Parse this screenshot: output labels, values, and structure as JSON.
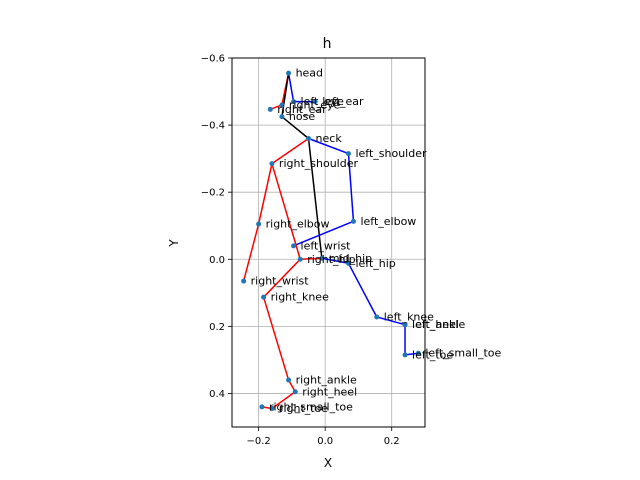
{
  "chart_data": {
    "type": "scatter",
    "title": "h",
    "xlabel": "X",
    "ylabel": "Y",
    "xlim": [
      -0.28,
      0.3
    ],
    "ylim": [
      0.5,
      -0.6
    ],
    "y_inverted": true,
    "grid": true,
    "xticks": [
      -0.2,
      0.0,
      0.2
    ],
    "xtick_labels": [
      "−0.2",
      "0.0",
      "0.2"
    ],
    "yticks": [
      -0.6,
      -0.4,
      -0.2,
      0.0,
      0.2,
      0.4
    ],
    "ytick_labels": [
      "−0.6",
      "−0.4",
      "−0.2",
      "0.0",
      "0.2",
      "0.4"
    ],
    "colors": {
      "left": "#0000ff",
      "right": "#ff0000",
      "center": "#000000",
      "point": "#1f77b4",
      "grid": "#b0b0b0"
    },
    "keypoints": [
      {
        "name": "head",
        "x": -0.11,
        "y": -0.555
      },
      {
        "name": "left_eye",
        "x": -0.095,
        "y": -0.47
      },
      {
        "name": "right_eye",
        "x": -0.13,
        "y": -0.46
      },
      {
        "name": "left_ear",
        "x": -0.03,
        "y": -0.47
      },
      {
        "name": "right_ear",
        "x": -0.165,
        "y": -0.447
      },
      {
        "name": "nose",
        "x": -0.13,
        "y": -0.425
      },
      {
        "name": "neck",
        "x": -0.05,
        "y": -0.36
      },
      {
        "name": "left_shoulder",
        "x": 0.07,
        "y": -0.315
      },
      {
        "name": "right_shoulder",
        "x": -0.16,
        "y": -0.285
      },
      {
        "name": "left_elbow",
        "x": 0.085,
        "y": -0.113
      },
      {
        "name": "right_elbow",
        "x": -0.2,
        "y": -0.105
      },
      {
        "name": "left_wrist",
        "x": -0.095,
        "y": -0.04
      },
      {
        "name": "right_wrist",
        "x": -0.245,
        "y": 0.065
      },
      {
        "name": "mid_hip",
        "x": -0.01,
        "y": -0.003
      },
      {
        "name": "left_hip",
        "x": 0.07,
        "y": 0.012
      },
      {
        "name": "right_hip",
        "x": -0.075,
        "y": 0.0
      },
      {
        "name": "left_knee",
        "x": 0.155,
        "y": 0.172
      },
      {
        "name": "right_knee",
        "x": -0.185,
        "y": 0.113
      },
      {
        "name": "left_ankle",
        "x": 0.24,
        "y": 0.195
      },
      {
        "name": "right_ankle",
        "x": -0.11,
        "y": 0.36
      },
      {
        "name": "left_heel",
        "x": 0.24,
        "y": 0.195
      },
      {
        "name": "right_heel",
        "x": -0.09,
        "y": 0.395
      },
      {
        "name": "left_small_toe",
        "x": 0.28,
        "y": 0.28
      },
      {
        "name": "right_small_toe",
        "x": -0.19,
        "y": 0.44
      },
      {
        "name": "left_toe",
        "x": 0.24,
        "y": 0.285
      },
      {
        "name": "right_toe",
        "x": -0.16,
        "y": 0.445
      }
    ],
    "labels": [
      {
        "name": "head",
        "text": "head"
      },
      {
        "name": "left_eye",
        "text": "left_eye"
      },
      {
        "name": "right_eye",
        "text": "right_eye"
      },
      {
        "name": "left_ear",
        "text": "left_ear"
      },
      {
        "name": "right_ear",
        "text": "right_ear"
      },
      {
        "name": "nose",
        "text": "nose"
      },
      {
        "name": "neck",
        "text": "neck"
      },
      {
        "name": "left_shoulder",
        "text": "left_shoulder"
      },
      {
        "name": "right_shoulder",
        "text": "right_shoulder"
      },
      {
        "name": "left_elbow",
        "text": "left_elbow"
      },
      {
        "name": "right_elbow",
        "text": "right_elbow"
      },
      {
        "name": "left_wrist",
        "text": "left_wrist"
      },
      {
        "name": "right_wrist",
        "text": "right_wrist"
      },
      {
        "name": "mid_hip",
        "text": "mid_hip"
      },
      {
        "name": "left_hip",
        "text": "left_hip"
      },
      {
        "name": "right_hip",
        "text": "right_hip"
      },
      {
        "name": "left_knee",
        "text": "left_knee"
      },
      {
        "name": "right_knee",
        "text": "right_knee"
      },
      {
        "name": "left_ankle",
        "text": "left_ankle"
      },
      {
        "name": "right_ankle",
        "text": "right_ankle"
      },
      {
        "name": "left_heel",
        "text": "left_heel"
      },
      {
        "name": "right_heel",
        "text": "right_heel"
      },
      {
        "name": "left_small_toe",
        "text": "left_small_toe"
      },
      {
        "name": "right_small_toe",
        "text": "right_small_toe"
      },
      {
        "name": "left_toe",
        "text": "left_toe"
      },
      {
        "name": "right_toe",
        "text": "right_toe"
      }
    ],
    "bones": [
      {
        "from": "head",
        "to": "right_eye",
        "side": "right"
      },
      {
        "from": "right_eye",
        "to": "right_ear",
        "side": "right"
      },
      {
        "from": "head",
        "to": "left_eye",
        "side": "left"
      },
      {
        "from": "left_eye",
        "to": "left_ear",
        "side": "left"
      },
      {
        "from": "head",
        "to": "nose",
        "side": "center"
      },
      {
        "from": "nose",
        "to": "neck",
        "side": "center"
      },
      {
        "from": "neck",
        "to": "mid_hip",
        "side": "center"
      },
      {
        "from": "neck",
        "to": "left_shoulder",
        "side": "left"
      },
      {
        "from": "left_shoulder",
        "to": "left_elbow",
        "side": "left"
      },
      {
        "from": "left_elbow",
        "to": "left_wrist",
        "side": "left"
      },
      {
        "from": "neck",
        "to": "right_shoulder",
        "side": "right"
      },
      {
        "from": "right_shoulder",
        "to": "right_elbow",
        "side": "right"
      },
      {
        "from": "right_elbow",
        "to": "right_wrist",
        "side": "right"
      },
      {
        "from": "mid_hip",
        "to": "left_hip",
        "side": "left"
      },
      {
        "from": "left_hip",
        "to": "left_knee",
        "side": "left"
      },
      {
        "from": "left_knee",
        "to": "left_ankle",
        "side": "left"
      },
      {
        "from": "left_ankle",
        "to": "left_heel",
        "side": "left"
      },
      {
        "from": "left_ankle",
        "to": "left_toe",
        "side": "left"
      },
      {
        "from": "left_toe",
        "to": "left_small_toe",
        "side": "left"
      },
      {
        "from": "mid_hip",
        "to": "right_hip",
        "side": "right"
      },
      {
        "from": "right_shoulder",
        "to": "right_hip",
        "side": "right"
      },
      {
        "from": "right_hip",
        "to": "right_knee",
        "side": "right"
      },
      {
        "from": "right_knee",
        "to": "right_ankle",
        "side": "right"
      },
      {
        "from": "right_ankle",
        "to": "right_heel",
        "side": "right"
      },
      {
        "from": "right_heel",
        "to": "right_toe",
        "side": "right"
      },
      {
        "from": "right_toe",
        "to": "right_small_toe",
        "side": "right"
      }
    ]
  }
}
